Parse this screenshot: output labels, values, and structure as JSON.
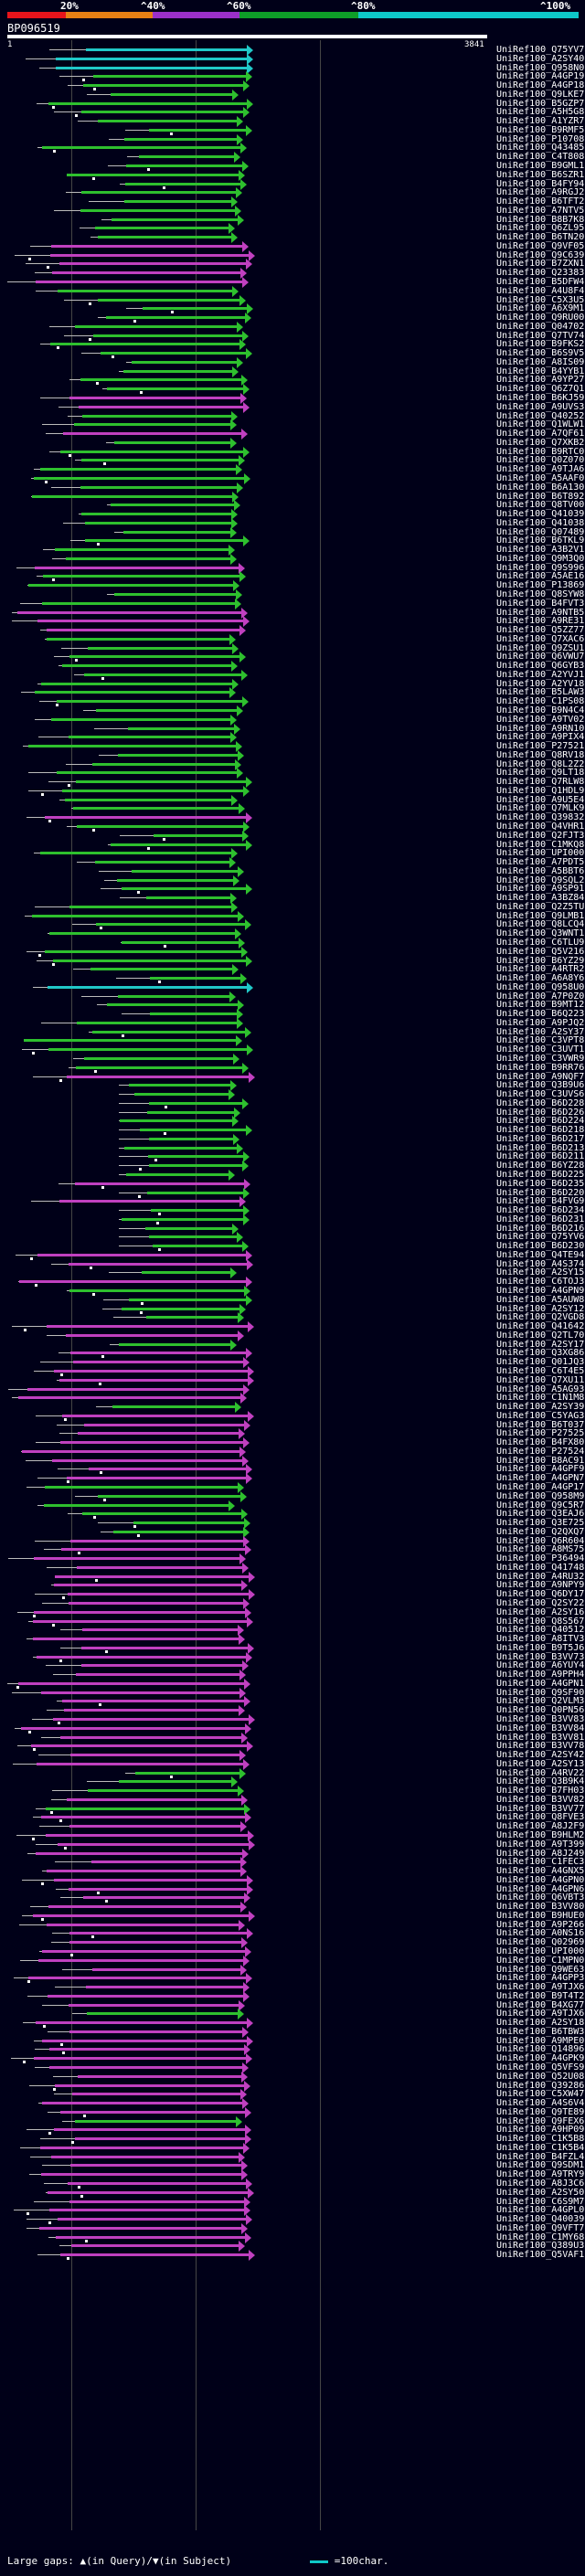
{
  "scale": {
    "labels": [
      "20%",
      "^40%",
      "^60%",
      "^80%",
      "^100%"
    ],
    "colors": [
      "#e8141b",
      "#e88014",
      "#9b30c8",
      "#0e9e28",
      "#0ec8c8"
    ]
  },
  "header": {
    "query_id": "BP096519",
    "query_start": "1",
    "query_end": "3841"
  },
  "hits": [
    {
      "id": "UniRef100_Q75YV7",
      "color": "cyan"
    },
    {
      "id": "UniRef100_A2SY40",
      "color": "cyan"
    },
    {
      "id": "UniRef100_Q958N0",
      "color": "cyan"
    },
    {
      "id": "UniRef100_A4GP19",
      "color": "green"
    },
    {
      "id": "UniRef100_A4GP18",
      "color": "green"
    },
    {
      "id": "UniRef100_Q9LKE7",
      "color": "green"
    },
    {
      "id": "UniRef100_B5GZP7",
      "color": "green"
    },
    {
      "id": "UniRef100_A5H5G8",
      "color": "green"
    },
    {
      "id": "UniRef100_A1YZR7",
      "color": "green"
    },
    {
      "id": "UniRef100_B9RMF5",
      "color": "green"
    },
    {
      "id": "UniRef100_P10708",
      "color": "green"
    },
    {
      "id": "UniRef100_Q43485",
      "color": "green"
    },
    {
      "id": "UniRef100_C4T808",
      "color": "green"
    },
    {
      "id": "UniRef100_B9GML1",
      "color": "green"
    },
    {
      "id": "UniRef100_B6SZR1",
      "color": "green"
    },
    {
      "id": "UniRef100_B4FY94",
      "color": "green"
    },
    {
      "id": "UniRef100_A9RGJ2",
      "color": "green"
    },
    {
      "id": "UniRef100_B6TFT2",
      "color": "green"
    },
    {
      "id": "UniRef100_A7NTV5",
      "color": "green"
    },
    {
      "id": "UniRef100_B8B7K8",
      "color": "green"
    },
    {
      "id": "UniRef100_Q6ZL95",
      "color": "green"
    },
    {
      "id": "UniRef100_B6TN20",
      "color": "green"
    },
    {
      "id": "UniRef100_Q9VF05",
      "color": "magenta"
    },
    {
      "id": "UniRef100_Q9C639",
      "color": "magenta"
    },
    {
      "id": "UniRef100_B7ZXN1",
      "color": "magenta"
    },
    {
      "id": "UniRef100_Q23383",
      "color": "magenta"
    },
    {
      "id": "UniRef100_B5DFW4",
      "color": "magenta"
    },
    {
      "id": "UniRef100_A4U8F4",
      "color": "green"
    },
    {
      "id": "UniRef100_C5X3U5",
      "color": "green"
    },
    {
      "id": "UniRef100_A6X9M1",
      "color": "green"
    },
    {
      "id": "UniRef100_Q9RU00",
      "color": "green"
    },
    {
      "id": "UniRef100_Q04702",
      "color": "green"
    },
    {
      "id": "UniRef100_Q7TV74",
      "color": "green"
    },
    {
      "id": "UniRef100_B9FKS2",
      "color": "green"
    },
    {
      "id": "UniRef100_B6S9V5",
      "color": "green"
    },
    {
      "id": "UniRef100_A8IS09",
      "color": "green"
    },
    {
      "id": "UniRef100_B4YYB1",
      "color": "green"
    },
    {
      "id": "UniRef100_A9YP27",
      "color": "green"
    },
    {
      "id": "UniRef100_Q6Z7Q1",
      "color": "green"
    },
    {
      "id": "UniRef100_B6KJ59",
      "color": "magenta"
    },
    {
      "id": "UniRef100_A9UVS3",
      "color": "magenta"
    },
    {
      "id": "UniRef100_Q40252",
      "color": "green"
    },
    {
      "id": "UniRef100_Q1WLW1",
      "color": "green"
    },
    {
      "id": "UniRef100_A7QF61",
      "color": "magenta"
    },
    {
      "id": "UniRef100_Q7XKB2",
      "color": "green"
    },
    {
      "id": "UniRef100_B9RTC0",
      "color": "green"
    },
    {
      "id": "UniRef100_Q0Z070",
      "color": "green"
    },
    {
      "id": "UniRef100_A9TJA6",
      "color": "green"
    },
    {
      "id": "UniRef100_A5AAF0",
      "color": "green"
    },
    {
      "id": "UniRef100_B6A130",
      "color": "green"
    },
    {
      "id": "UniRef100_B6T892",
      "color": "green"
    },
    {
      "id": "UniRef100_Q8TV00",
      "color": "green"
    },
    {
      "id": "UniRef100_Q41039",
      "color": "green"
    },
    {
      "id": "UniRef100_Q41038",
      "color": "green"
    },
    {
      "id": "UniRef100_Q07489",
      "color": "green"
    },
    {
      "id": "UniRef100_B6TKL9",
      "color": "green"
    },
    {
      "id": "UniRef100_A3B2V1",
      "color": "green"
    },
    {
      "id": "UniRef100_Q9M3Q0",
      "color": "green"
    },
    {
      "id": "UniRef100_Q9S996",
      "color": "magenta"
    },
    {
      "id": "UniRef100_A5AE16",
      "color": "green"
    },
    {
      "id": "UniRef100_P13869",
      "color": "green"
    },
    {
      "id": "UniRef100_Q8SYW8",
      "color": "green"
    },
    {
      "id": "UniRef100_B4FVT3",
      "color": "green"
    },
    {
      "id": "UniRef100_A9NTB5",
      "color": "magenta"
    },
    {
      "id": "UniRef100_A9RE31",
      "color": "magenta"
    },
    {
      "id": "UniRef100_Q5ZZ77",
      "color": "magenta"
    },
    {
      "id": "UniRef100_Q7XAC6",
      "color": "green"
    },
    {
      "id": "UniRef100_Q9ZSU1",
      "color": "green"
    },
    {
      "id": "UniRef100_Q6VWU7",
      "color": "green"
    },
    {
      "id": "UniRef100_Q6GYB3",
      "color": "green"
    },
    {
      "id": "UniRef100_A2YVJ1",
      "color": "green"
    },
    {
      "id": "UniRef100_A2YV18",
      "color": "green"
    },
    {
      "id": "UniRef100_B5LAW3",
      "color": "green"
    },
    {
      "id": "UniRef100_C1PS08",
      "color": "green"
    },
    {
      "id": "UniRef100_B9N4C4",
      "color": "green"
    },
    {
      "id": "UniRef100_A9TV02",
      "color": "green"
    },
    {
      "id": "UniRef100_A9RN10",
      "color": "green"
    },
    {
      "id": "UniRef100_A9PIX4",
      "color": "green"
    },
    {
      "id": "UniRef100_P27521",
      "color": "green"
    },
    {
      "id": "UniRef100_Q8RV18",
      "color": "green"
    },
    {
      "id": "UniRef100_Q8L2Z2",
      "color": "green"
    },
    {
      "id": "UniRef100_Q9LT18",
      "color": "green"
    },
    {
      "id": "UniRef100_Q7RLW8",
      "color": "green"
    },
    {
      "id": "UniRef100_Q1HDL9",
      "color": "green"
    },
    {
      "id": "UniRef100_A9U5E4",
      "color": "green"
    },
    {
      "id": "UniRef100_Q7MLK9",
      "color": "green"
    },
    {
      "id": "UniRef100_Q39832",
      "color": "magenta"
    },
    {
      "id": "UniRef100_Q4VHR1",
      "color": "green"
    },
    {
      "id": "UniRef100_Q2FJT3",
      "color": "green"
    },
    {
      "id": "UniRef100_C1MKQ8",
      "color": "green"
    },
    {
      "id": "UniRef100_UPI000...",
      "color": "green"
    },
    {
      "id": "UniRef100_A7PDT5",
      "color": "green"
    },
    {
      "id": "UniRef100_A5BBT6",
      "color": "green"
    },
    {
      "id": "UniRef100_Q9SQL2",
      "color": "green"
    },
    {
      "id": "UniRef100_A9SP91",
      "color": "green"
    },
    {
      "id": "UniRef100_A3BZ84",
      "color": "green"
    },
    {
      "id": "UniRef100_Q2Z5TU",
      "color": "green"
    },
    {
      "id": "UniRef100_Q9LMB1",
      "color": "green"
    },
    {
      "id": "UniRef100_Q8LCQ4",
      "color": "green"
    },
    {
      "id": "UniRef100_Q3WNT1",
      "color": "green"
    },
    {
      "id": "UniRef100_C6TLU9",
      "color": "green"
    },
    {
      "id": "UniRef100_Q5V216",
      "color": "green"
    },
    {
      "id": "UniRef100_B6YZ29",
      "color": "green"
    },
    {
      "id": "UniRef100_A4RTR2",
      "color": "green"
    },
    {
      "id": "UniRef100_A6A8Y6",
      "color": "green"
    },
    {
      "id": "UniRef100_Q958U0",
      "color": "cyan"
    },
    {
      "id": "UniRef100_A7P0Z0",
      "color": "green"
    },
    {
      "id": "UniRef100_B9MT12",
      "color": "green"
    },
    {
      "id": "UniRef100_B6Q223",
      "color": "green"
    },
    {
      "id": "UniRef100_A9PJQ2",
      "color": "green"
    },
    {
      "id": "UniRef100_A2SY37",
      "color": "green"
    },
    {
      "id": "UniRef100_C3VPT8",
      "color": "green"
    },
    {
      "id": "UniRef100_C3UVT1",
      "color": "green"
    },
    {
      "id": "UniRef100_C3VWR9",
      "color": "green"
    },
    {
      "id": "UniRef100_B9RR76",
      "color": "green"
    },
    {
      "id": "UniRef100_A9NQF7",
      "color": "magenta"
    },
    {
      "id": "UniRef100_Q3B9U6",
      "color": "green"
    },
    {
      "id": "UniRef100_C3UVS6",
      "color": "green"
    },
    {
      "id": "UniRef100_B6D228",
      "color": "green"
    },
    {
      "id": "UniRef100_B6D226",
      "color": "green"
    },
    {
      "id": "UniRef100_B6D224",
      "color": "green"
    },
    {
      "id": "UniRef100_B6D218",
      "color": "green"
    },
    {
      "id": "UniRef100_B6D217",
      "color": "green"
    },
    {
      "id": "UniRef100_B6D213",
      "color": "green"
    },
    {
      "id": "UniRef100_B6D211",
      "color": "green"
    },
    {
      "id": "UniRef100_B6YZ28",
      "color": "green"
    },
    {
      "id": "UniRef100_B6D225",
      "color": "green"
    },
    {
      "id": "UniRef100_B6D235",
      "color": "magenta"
    },
    {
      "id": "UniRef100_B6D220",
      "color": "green"
    },
    {
      "id": "UniRef100_B4FVG9",
      "color": "magenta"
    },
    {
      "id": "UniRef100_B6D234",
      "color": "green"
    },
    {
      "id": "UniRef100_B6D231",
      "color": "green"
    },
    {
      "id": "UniRef100_B6D216",
      "color": "green"
    },
    {
      "id": "UniRef100_Q75YV6",
      "color": "green"
    },
    {
      "id": "UniRef100_B6D230",
      "color": "green"
    },
    {
      "id": "UniRef100_Q4TE94",
      "color": "magenta"
    },
    {
      "id": "UniRef100_A4S374",
      "color": "magenta"
    },
    {
      "id": "UniRef100_A2SY15",
      "color": "green"
    },
    {
      "id": "UniRef100_C6TOJ3",
      "color": "magenta"
    },
    {
      "id": "UniRef100_A4GPN9",
      "color": "green"
    },
    {
      "id": "UniRef100_A5AUW8",
      "color": "green"
    },
    {
      "id": "UniRef100_A2SY12",
      "color": "green"
    },
    {
      "id": "UniRef100_Q2VGD8",
      "color": "green"
    },
    {
      "id": "UniRef100_Q41642",
      "color": "magenta"
    },
    {
      "id": "UniRef100_Q2TL70",
      "color": "magenta"
    },
    {
      "id": "UniRef100_A2SY17",
      "color": "green"
    },
    {
      "id": "UniRef100_Q3XG86",
      "color": "magenta"
    },
    {
      "id": "UniRef100_Q01JQ3",
      "color": "magenta"
    },
    {
      "id": "UniRef100_C6T4E5",
      "color": "magenta"
    },
    {
      "id": "UniRef100_Q7XU11",
      "color": "magenta"
    },
    {
      "id": "UniRef100_A5AG93",
      "color": "magenta"
    },
    {
      "id": "UniRef100_C1N1M8",
      "color": "magenta"
    },
    {
      "id": "UniRef100_A2SY39",
      "color": "green"
    },
    {
      "id": "UniRef100_C5YAG3",
      "color": "magenta"
    },
    {
      "id": "UniRef100_B6T037",
      "color": "magenta"
    },
    {
      "id": "UniRef100_P27525",
      "color": "magenta"
    },
    {
      "id": "UniRef100_B4FX80",
      "color": "magenta"
    },
    {
      "id": "UniRef100_P27524",
      "color": "magenta"
    },
    {
      "id": "UniRef100_B8AC91",
      "color": "magenta"
    },
    {
      "id": "UniRef100_A4GPF9",
      "color": "magenta"
    },
    {
      "id": "UniRef100_A4GPN7",
      "color": "magenta"
    },
    {
      "id": "UniRef100_A4GP17",
      "color": "green"
    },
    {
      "id": "UniRef100_Q958M9",
      "color": "green"
    },
    {
      "id": "UniRef100_Q9C5R7",
      "color": "green"
    },
    {
      "id": "UniRef100_Q3EAJ6",
      "color": "green"
    },
    {
      "id": "UniRef100_Q3E725",
      "color": "green"
    },
    {
      "id": "UniRef100_Q2QXQ7",
      "color": "green"
    },
    {
      "id": "UniRef100_Q6R604",
      "color": "magenta"
    },
    {
      "id": "UniRef100_A8MS75",
      "color": "magenta"
    },
    {
      "id": "UniRef100_P36494",
      "color": "magenta"
    },
    {
      "id": "UniRef100_Q41748",
      "color": "magenta"
    },
    {
      "id": "UniRef100_A4RU32",
      "color": "magenta"
    },
    {
      "id": "UniRef100_A9NPY9",
      "color": "magenta"
    },
    {
      "id": "UniRef100_Q6DY17",
      "color": "magenta"
    },
    {
      "id": "UniRef100_Q2SY22",
      "color": "magenta"
    },
    {
      "id": "UniRef100_A2SY16",
      "color": "magenta"
    },
    {
      "id": "UniRef100_Q8S567",
      "color": "magenta"
    },
    {
      "id": "UniRef100_Q40512",
      "color": "magenta"
    },
    {
      "id": "UniRef100_A8ITV3",
      "color": "magenta"
    },
    {
      "id": "UniRef100_B9T5J6",
      "color": "magenta"
    },
    {
      "id": "UniRef100_B3VV73",
      "color": "magenta"
    },
    {
      "id": "UniRef100_A6YUY4",
      "color": "magenta"
    },
    {
      "id": "UniRef100_A9PPH4",
      "color": "magenta"
    },
    {
      "id": "UniRef100_A4GPN1",
      "color": "magenta"
    },
    {
      "id": "UniRef100_Q9SF90",
      "color": "magenta"
    },
    {
      "id": "UniRef100_Q2VLM3",
      "color": "magenta"
    },
    {
      "id": "UniRef100_Q0PN56",
      "color": "magenta"
    },
    {
      "id": "UniRef100_B3VV83",
      "color": "magenta"
    },
    {
      "id": "UniRef100_B3VV84",
      "color": "magenta"
    },
    {
      "id": "UniRef100_B3VV81",
      "color": "magenta"
    },
    {
      "id": "UniRef100_B3VV78",
      "color": "magenta"
    },
    {
      "id": "UniRef100_A2SY42",
      "color": "magenta"
    },
    {
      "id": "UniRef100_A2SY13",
      "color": "magenta"
    },
    {
      "id": "UniRef100_A4RV22",
      "color": "green"
    },
    {
      "id": "UniRef100_Q3B9K4",
      "color": "green"
    },
    {
      "id": "UniRef100_B7FH03",
      "color": "green"
    },
    {
      "id": "UniRef100_B3VV82",
      "color": "magenta"
    },
    {
      "id": "UniRef100_B3VV77",
      "color": "green"
    },
    {
      "id": "UniRef100_Q8FVE3",
      "color": "magenta"
    },
    {
      "id": "UniRef100_A8J2F9",
      "color": "magenta"
    },
    {
      "id": "UniRef100_B9HLM2",
      "color": "magenta"
    },
    {
      "id": "UniRef100_A9T399",
      "color": "magenta"
    },
    {
      "id": "UniRef100_A8J249",
      "color": "magenta"
    },
    {
      "id": "UniRef100_C1FEC3",
      "color": "magenta"
    },
    {
      "id": "UniRef100_A4GNX5",
      "color": "magenta"
    },
    {
      "id": "UniRef100_A4GPN0",
      "color": "magenta"
    },
    {
      "id": "UniRef100_A4GPN6",
      "color": "magenta"
    },
    {
      "id": "UniRef100_Q6VBT3",
      "color": "magenta"
    },
    {
      "id": "UniRef100_B3VV80",
      "color": "magenta"
    },
    {
      "id": "UniRef100_B9HUE0",
      "color": "magenta"
    },
    {
      "id": "UniRef100_A9P266",
      "color": "magenta"
    },
    {
      "id": "UniRef100_A0NS16",
      "color": "magenta"
    },
    {
      "id": "UniRef100_Q02969",
      "color": "magenta"
    },
    {
      "id": "UniRef100_UPI000...",
      "color": "magenta"
    },
    {
      "id": "UniRef100_C1MPN0",
      "color": "magenta"
    },
    {
      "id": "UniRef100_Q9WE63",
      "color": "magenta"
    },
    {
      "id": "UniRef100_A4GPP3",
      "color": "magenta"
    },
    {
      "id": "UniRef100_A9TJX6",
      "color": "magenta"
    },
    {
      "id": "UniRef100_B9T4T2",
      "color": "magenta"
    },
    {
      "id": "UniRef100_B4XG77",
      "color": "magenta"
    },
    {
      "id": "UniRef100_A9TJX6",
      "color": "green"
    },
    {
      "id": "UniRef100_A2SY18",
      "color": "magenta"
    },
    {
      "id": "UniRef100_B6TBW3",
      "color": "magenta"
    },
    {
      "id": "UniRef100_A9MPE0",
      "color": "magenta"
    },
    {
      "id": "UniRef100_Q14896",
      "color": "magenta"
    },
    {
      "id": "UniRef100_A4GPK9",
      "color": "magenta"
    },
    {
      "id": "UniRef100_Q5VFS9",
      "color": "magenta"
    },
    {
      "id": "UniRef100_Q52U08",
      "color": "magenta"
    },
    {
      "id": "UniRef100_Q39286",
      "color": "magenta"
    },
    {
      "id": "UniRef100_C5XW47",
      "color": "magenta"
    },
    {
      "id": "UniRef100_A4S6V4",
      "color": "magenta"
    },
    {
      "id": "UniRef100_Q9TE89",
      "color": "magenta"
    },
    {
      "id": "UniRef100_Q9FEX6",
      "color": "green"
    },
    {
      "id": "UniRef100_A9HP09",
      "color": "magenta"
    },
    {
      "id": "UniRef100_C1K5B8",
      "color": "magenta"
    },
    {
      "id": "UniRef100_C1K5B4",
      "color": "magenta"
    },
    {
      "id": "UniRef100_B4FZL4",
      "color": "magenta"
    },
    {
      "id": "UniRef100_Q9SDM1",
      "color": "magenta"
    },
    {
      "id": "UniRef100_A9TRY9",
      "color": "magenta"
    },
    {
      "id": "UniRef100_A8J3C6",
      "color": "magenta"
    },
    {
      "id": "UniRef100_A2SY50",
      "color": "magenta"
    },
    {
      "id": "UniRef100_C6S9M7",
      "color": "magenta"
    },
    {
      "id": "UniRef100_A4GPL0",
      "color": "magenta"
    },
    {
      "id": "UniRef100_Q40039",
      "color": "magenta"
    },
    {
      "id": "UniRef100_Q9VFT7",
      "color": "magenta"
    },
    {
      "id": "UniRef100_C1MY68",
      "color": "magenta"
    },
    {
      "id": "UniRef100_Q389U3",
      "color": "magenta"
    },
    {
      "id": "UniRef100_Q5VAF1",
      "color": "magenta"
    }
  ],
  "legend": {
    "large_gaps": "Large gaps:",
    "query_sym": "(in Query)/",
    "subject_sym": "(in Subject)",
    "scale": "=100char."
  }
}
